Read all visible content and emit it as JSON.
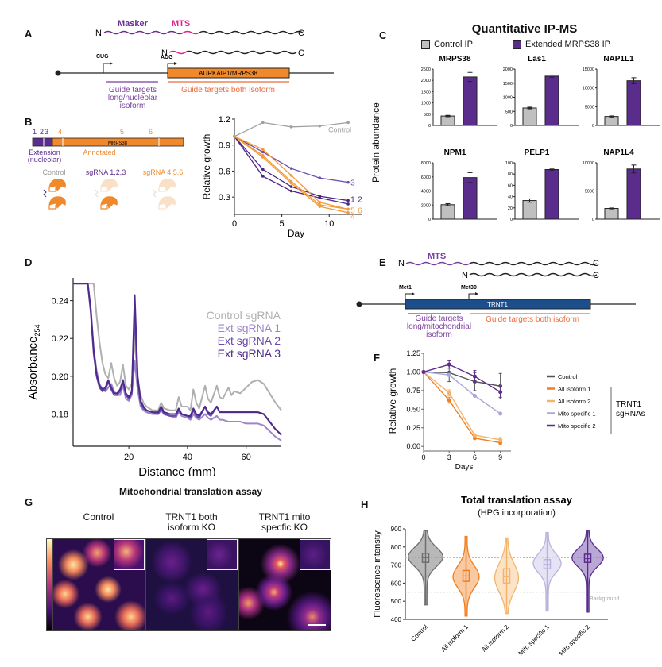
{
  "panels": {
    "A": {
      "label": "A",
      "protein_long": {
        "n": "N",
        "c": "C",
        "masker": "Masker",
        "mts": "MTS"
      },
      "protein_short": {
        "n": "N",
        "c": "C"
      },
      "start_long": "CUG",
      "start_short": "AUG",
      "gene": "AURKAIP1/MRPS38",
      "guide_long": [
        "Guide targets",
        "long/nucleolar",
        "isoform"
      ],
      "guide_both": "Guide targets both isoform",
      "colors": {
        "masker": "#6a2c91",
        "mts": "#e0218a",
        "gene": "#f0892b",
        "guide_long": "#7b3fa0",
        "guide_both": "#ee6a3a"
      }
    },
    "B": {
      "label": "B",
      "sgrna_positions": [
        "1",
        "2",
        "3",
        "4",
        "5",
        "6"
      ],
      "gene": "MRPS38",
      "extension_label": [
        "Extension",
        "(nucleolar)"
      ],
      "annotated_label": "Annotated",
      "conditions": [
        {
          "label": "Control",
          "color": "#999999"
        },
        {
          "label": "sgRNA 1,2,3",
          "color": "#5b2d8e"
        },
        {
          "label": "sgRNA 4,5,6",
          "color": "#f0892b"
        }
      ]
    },
    "C": {
      "label": "C",
      "title": "Quantitative IP-MS",
      "ylabel": "Protein abundance",
      "legend": [
        {
          "label": "Control IP",
          "color": "#c0c0c0"
        },
        {
          "label": "Extended MRPS38 IP",
          "color": "#5a2d8c"
        }
      ]
    },
    "D": {
      "label": "D"
    },
    "E": {
      "label": "E",
      "mts": "MTS",
      "protein_long": {
        "n": "N",
        "c": "C"
      },
      "protein_short": {
        "n": "N",
        "c": "C"
      },
      "start_long": "Met1",
      "start_short": "Met30",
      "gene": "TRNT1",
      "guide_long": [
        "Guide targets",
        "long/mitochondrial",
        "isoform"
      ],
      "guide_both": "Guide targets both isoform",
      "colors": {
        "mts": "#7b3fa0",
        "gene": "#1c4e8c",
        "guide_long": "#7b3fa0",
        "guide_both": "#ee6a3a"
      }
    },
    "F": {
      "label": "F",
      "group_label": [
        "TRNT1",
        "sgRNAs"
      ]
    },
    "G": {
      "label": "G",
      "title": "Mitochondrial translation assay",
      "images": [
        {
          "title": [
            "",
            "Control"
          ],
          "brightness": "high"
        },
        {
          "title": [
            "TRNT1 both",
            "isoform KO"
          ],
          "brightness": "low"
        },
        {
          "title": [
            "TRNT1 mito",
            "specfic KO"
          ],
          "brightness": "medium"
        }
      ]
    },
    "H": {
      "label": "H"
    }
  },
  "chart_data": [
    {
      "id": "B-growth",
      "type": "line",
      "title": "",
      "xlabel": "Day",
      "ylabel": "Relative growth",
      "xlim": [
        0,
        13
      ],
      "ylim": [
        0.1,
        1.2
      ],
      "xticks": [
        0,
        5,
        10
      ],
      "yticks": [
        0.3,
        0.6,
        0.9,
        1.2
      ],
      "x": [
        0,
        3,
        6,
        9,
        12
      ],
      "series": [
        {
          "name": "Control",
          "label": "Control",
          "color": "#a0a0a0",
          "values": [
            1.0,
            1.16,
            1.11,
            1.12,
            1.16
          ]
        },
        {
          "name": "sgRNA 1",
          "label": "1",
          "color": "#4b2587",
          "values": [
            1.0,
            0.54,
            0.37,
            0.29,
            0.22
          ]
        },
        {
          "name": "sgRNA 2",
          "label": "2",
          "color": "#4b2587",
          "values": [
            1.0,
            0.62,
            0.42,
            0.31,
            0.26
          ]
        },
        {
          "name": "sgRNA 3",
          "label": "3",
          "color": "#6d4fb0",
          "values": [
            1.0,
            0.82,
            0.63,
            0.52,
            0.47
          ]
        },
        {
          "name": "sgRNA 4",
          "label": "4",
          "color": "#f39a3a",
          "values": [
            1.0,
            0.76,
            0.46,
            0.19,
            0.12
          ]
        },
        {
          "name": "sgRNA 5",
          "label": "5",
          "color": "#f39a3a",
          "values": [
            1.0,
            0.78,
            0.48,
            0.21,
            0.16
          ]
        },
        {
          "name": "sgRNA 6",
          "label": "6",
          "color": "#f39a3a",
          "values": [
            1.0,
            0.85,
            0.55,
            0.24,
            0.16
          ]
        }
      ]
    },
    {
      "id": "C-ipms",
      "type": "bar",
      "title": "Quantitative IP-MS",
      "ylabel": "Protein abundance",
      "categories": [
        "Control IP",
        "Extended MRPS38 IP"
      ],
      "subplots": [
        {
          "title": "MRPS38",
          "ylim": [
            0,
            2500
          ],
          "yticks": [
            0,
            500,
            1000,
            1500,
            2000,
            2500
          ],
          "values": [
            420,
            2150
          ],
          "errors": [
            30,
            200
          ]
        },
        {
          "title": "Las1",
          "ylim": [
            0,
            2000
          ],
          "yticks": [
            0,
            500,
            1000,
            1500,
            2000
          ],
          "values": [
            620,
            1750
          ],
          "errors": [
            30,
            40
          ]
        },
        {
          "title": "NAP1L1",
          "ylim": [
            0,
            15000
          ],
          "yticks": [
            0,
            5000,
            10000,
            15000
          ],
          "values": [
            2400,
            11900
          ],
          "errors": [
            150,
            800
          ]
        },
        {
          "title": "NPM1",
          "ylim": [
            0,
            8000
          ],
          "yticks": [
            0,
            2000,
            4000,
            6000,
            8000
          ],
          "values": [
            2050,
            5900
          ],
          "errors": [
            150,
            700
          ]
        },
        {
          "title": "PELP1",
          "ylim": [
            0,
            100
          ],
          "yticks": [
            0,
            20,
            40,
            60,
            80,
            100
          ],
          "values": [
            33,
            88
          ],
          "errors": [
            3,
            1
          ]
        },
        {
          "title": "NAP1L4",
          "ylim": [
            0,
            10000
          ],
          "yticks": [
            0,
            5000,
            10000
          ],
          "values": [
            1900,
            8900
          ],
          "errors": [
            80,
            700
          ]
        }
      ]
    },
    {
      "id": "D-polysome",
      "type": "line",
      "xlabel": "Distance (mm)",
      "ylabel": "Absorbance",
      "ylabel_sub": "254",
      "xlim": [
        1,
        72
      ],
      "ylim": [
        0.163,
        0.252
      ],
      "xticks": [
        20,
        40,
        60
      ],
      "yticks": [
        0.18,
        0.2,
        0.22,
        0.24
      ],
      "legend_position": "top-right",
      "series": [
        {
          "name": "Control sgRNA",
          "color": "#b0b0b0",
          "x": [
            1,
            7,
            8,
            9,
            10,
            11,
            12,
            13,
            14,
            15,
            16,
            17,
            18,
            19,
            20,
            21,
            22,
            23,
            24,
            25,
            26,
            28,
            30,
            31,
            32,
            34,
            36,
            37,
            38,
            40,
            41,
            42,
            43,
            44,
            46,
            47,
            48,
            50,
            51,
            52,
            54,
            55,
            56,
            58,
            60,
            62,
            64,
            66,
            68,
            70,
            72
          ],
          "y": [
            0.249,
            0.249,
            0.249,
            0.232,
            0.218,
            0.207,
            0.201,
            0.199,
            0.207,
            0.199,
            0.195,
            0.197,
            0.206,
            0.195,
            0.193,
            0.196,
            0.22,
            0.198,
            0.19,
            0.186,
            0.184,
            0.182,
            0.182,
            0.186,
            0.183,
            0.182,
            0.182,
            0.189,
            0.184,
            0.184,
            0.182,
            0.193,
            0.186,
            0.183,
            0.195,
            0.188,
            0.186,
            0.195,
            0.189,
            0.188,
            0.194,
            0.19,
            0.192,
            0.191,
            0.194,
            0.197,
            0.198,
            0.196,
            0.191,
            0.186,
            0.182
          ]
        },
        {
          "name": "Ext sgRNA 1",
          "color": "#9a86c8",
          "x": [
            1,
            6,
            7,
            8,
            9,
            10,
            11,
            12,
            13,
            14,
            15,
            16,
            17,
            18,
            19,
            20,
            21,
            22,
            23,
            24,
            25,
            26,
            28,
            30,
            31,
            32,
            34,
            36,
            37,
            38,
            40,
            41,
            42,
            43,
            44,
            46,
            47,
            48,
            50,
            51,
            52,
            54,
            56,
            58,
            60,
            62,
            64,
            66,
            68,
            70,
            72
          ],
          "y": [
            0.249,
            0.249,
            0.235,
            0.215,
            0.203,
            0.196,
            0.193,
            0.192,
            0.194,
            0.196,
            0.192,
            0.19,
            0.19,
            0.195,
            0.188,
            0.187,
            0.19,
            0.208,
            0.193,
            0.184,
            0.182,
            0.181,
            0.18,
            0.18,
            0.182,
            0.18,
            0.179,
            0.178,
            0.181,
            0.179,
            0.178,
            0.177,
            0.18,
            0.178,
            0.177,
            0.18,
            0.178,
            0.177,
            0.179,
            0.177,
            0.177,
            0.176,
            0.176,
            0.176,
            0.175,
            0.175,
            0.175,
            0.174,
            0.171,
            0.168,
            0.166
          ]
        },
        {
          "name": "Ext sgRNA 2",
          "color": "#6a48ad",
          "x": [
            1,
            6,
            7,
            8,
            9,
            10,
            11,
            12,
            13,
            14,
            15,
            16,
            17,
            18,
            19,
            20,
            21,
            22,
            23,
            24,
            25,
            26,
            28,
            30,
            31,
            32,
            34,
            36,
            37,
            38,
            40,
            41,
            42,
            43,
            44,
            46,
            47,
            48,
            50,
            51,
            52,
            54,
            56,
            58,
            60,
            62,
            64,
            66,
            68,
            70,
            72
          ],
          "y": [
            0.249,
            0.249,
            0.234,
            0.212,
            0.2,
            0.194,
            0.192,
            0.193,
            0.197,
            0.193,
            0.19,
            0.19,
            0.192,
            0.197,
            0.19,
            0.188,
            0.191,
            0.232,
            0.198,
            0.186,
            0.183,
            0.182,
            0.181,
            0.18,
            0.183,
            0.18,
            0.179,
            0.179,
            0.182,
            0.18,
            0.179,
            0.178,
            0.182,
            0.179,
            0.178,
            0.184,
            0.18,
            0.179,
            0.184,
            0.181,
            0.181,
            0.181,
            0.181,
            0.181,
            0.181,
            0.181,
            0.181,
            0.18,
            0.176,
            0.172,
            0.169
          ]
        },
        {
          "name": "Ext sgRNA 3",
          "color": "#4f2a8c",
          "x": [
            1,
            6,
            7,
            8,
            9,
            10,
            11,
            12,
            13,
            14,
            15,
            16,
            17,
            18,
            19,
            20,
            21,
            22,
            23,
            24,
            25,
            26,
            28,
            30,
            31,
            32,
            34,
            36,
            37,
            38,
            40,
            41,
            42,
            43,
            44,
            46,
            47,
            48,
            50,
            51,
            52,
            54,
            56,
            58,
            60,
            62,
            64,
            66,
            68,
            70,
            72
          ],
          "y": [
            0.249,
            0.249,
            0.236,
            0.214,
            0.201,
            0.195,
            0.193,
            0.194,
            0.198,
            0.194,
            0.191,
            0.191,
            0.193,
            0.198,
            0.191,
            0.189,
            0.192,
            0.243,
            0.2,
            0.187,
            0.184,
            0.182,
            0.181,
            0.181,
            0.184,
            0.181,
            0.18,
            0.18,
            0.183,
            0.18,
            0.179,
            0.179,
            0.183,
            0.18,
            0.179,
            0.184,
            0.181,
            0.18,
            0.184,
            0.181,
            0.181,
            0.181,
            0.181,
            0.181,
            0.181,
            0.181,
            0.181,
            0.18,
            0.176,
            0.172,
            0.169
          ]
        }
      ]
    },
    {
      "id": "F-growth",
      "type": "line",
      "xlabel": "Days",
      "ylabel": "Relative growth",
      "xlim": [
        0,
        9.5
      ],
      "ylim": [
        -0.03,
        1.25
      ],
      "xticks": [
        0,
        3,
        6,
        9
      ],
      "yticks": [
        0.0,
        0.25,
        0.5,
        0.75,
        1.0,
        1.25
      ],
      "ytick_labels": [
        "0.00",
        "0.25",
        "0.50",
        "0.75",
        "1.00",
        "1.25"
      ],
      "legend_position": "right",
      "x": [
        0,
        3,
        6,
        9
      ],
      "series": [
        {
          "name": "Control",
          "color": "#555555",
          "values": [
            1.0,
            0.99,
            0.87,
            0.81
          ],
          "errors": [
            0,
            0.12,
            0.12,
            0.17
          ]
        },
        {
          "name": "All isoform 1",
          "color": "#f07f1e",
          "values": [
            1.0,
            0.62,
            0.11,
            0.05
          ],
          "errors": [
            0,
            0.04,
            0.01,
            0.02
          ]
        },
        {
          "name": "All isoform 2",
          "color": "#f5b36a",
          "values": [
            1.0,
            0.72,
            0.15,
            0.09
          ],
          "errors": [
            0,
            0.04,
            0.02,
            0.03
          ]
        },
        {
          "name": "Mito specific 1",
          "color": "#a9a7da",
          "values": [
            1.0,
            0.96,
            0.68,
            0.44
          ],
          "errors": [
            0,
            0.02,
            0.01,
            0.01
          ]
        },
        {
          "name": "Mito specific 2",
          "color": "#5a2d8c",
          "values": [
            1.0,
            1.1,
            0.94,
            0.73
          ],
          "errors": [
            0,
            0.05,
            0.08,
            0.07
          ]
        }
      ]
    },
    {
      "id": "H-violin",
      "type": "violin",
      "title": "Total translation assay",
      "subtitle": "(HPG incorporation)",
      "ylabel": "Fluorescence intenstiy",
      "ylim": [
        400,
        900
      ],
      "yticks": [
        400,
        500,
        600,
        700,
        800,
        900
      ],
      "reference_lines": [
        {
          "value": 740,
          "label": ""
        },
        {
          "value": 550,
          "label": "Background"
        }
      ],
      "categories": [
        "Control",
        "All isoform 1",
        "All isoform 2",
        "Mito specific 1",
        "Mito specific 2"
      ],
      "series": [
        {
          "name": "Control",
          "color": "#6e6e6e",
          "fill": "#9a9a9a",
          "min": 480,
          "max": 890,
          "q1": 715,
          "median": 740,
          "q3": 765,
          "mode": 745,
          "width": 1.0
        },
        {
          "name": "All isoform 1",
          "color": "#f07f1e",
          "fill": "#f6b27a",
          "min": 418,
          "max": 858,
          "q1": 610,
          "median": 640,
          "q3": 670,
          "mode": 635,
          "width": 0.75
        },
        {
          "name": "All isoform 2",
          "color": "#f5b36a",
          "fill": "#fad7ad",
          "min": 432,
          "max": 850,
          "q1": 600,
          "median": 635,
          "q3": 680,
          "mode": 630,
          "width": 0.68
        },
        {
          "name": "Mito specific 1",
          "color": "#b8b2dd",
          "fill": "#dcd8ef",
          "min": 446,
          "max": 880,
          "q1": 680,
          "median": 705,
          "q3": 730,
          "mode": 710,
          "width": 0.8
        },
        {
          "name": "Mito specific 2",
          "color": "#5a2d8c",
          "fill": "#9b83c3",
          "min": 440,
          "max": 890,
          "q1": 715,
          "median": 735,
          "q3": 760,
          "mode": 740,
          "width": 0.9
        }
      ]
    }
  ]
}
